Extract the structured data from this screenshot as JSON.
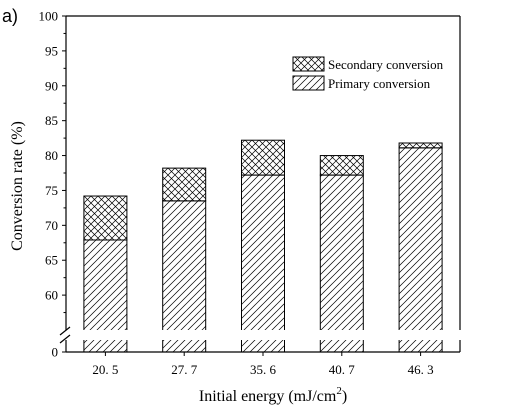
{
  "panel_label": "a)",
  "chart_data": {
    "type": "bar",
    "stacked": true,
    "categories": [
      "20. 5",
      "27. 7",
      "35. 6",
      "40. 7",
      "46. 3"
    ],
    "series": [
      {
        "name": "Primary conversion",
        "values": [
          67.9,
          73.5,
          77.2,
          77.2,
          81.1
        ],
        "pattern": "diagonal-hatch"
      },
      {
        "name": "Secondary conversion",
        "values": [
          6.3,
          4.7,
          5.0,
          2.8,
          0.7
        ],
        "pattern": "crosshatch"
      }
    ],
    "legend": {
      "placement": "top-right",
      "order": [
        "Secondary conversion",
        "Primary conversion"
      ]
    },
    "xlabel_text": "Initial energy (mJ/cm",
    "xlabel_sup": "2",
    "xlabel_close": ")",
    "ylabel": "Conversion rate (%)",
    "ylim": [
      55,
      100
    ],
    "y_break": {
      "below": 57.5,
      "shown_tick": 0
    },
    "yticks": [
      0,
      60,
      65,
      70,
      75,
      80,
      85,
      90,
      95,
      100
    ],
    "grid": false,
    "colors": {
      "bar_fill": "#ffffff",
      "stroke": "#000000"
    }
  }
}
